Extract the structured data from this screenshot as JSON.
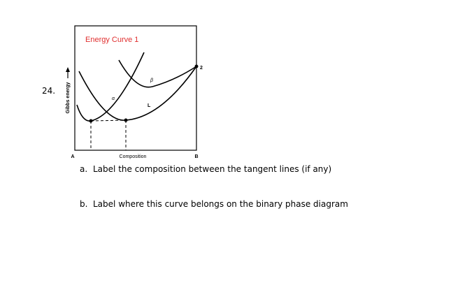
{
  "question": {
    "number": "24.",
    "figure": {
      "title": "Energy Curve 1",
      "y_label": "Gibbs energy",
      "x_label": "Composition",
      "x_left": "A",
      "x_right": "B",
      "alpha": "α",
      "beta": "β",
      "liquid": "L",
      "point": "2"
    },
    "items": [
      {
        "marker": "a.",
        "text": "Label the composition between the tangent lines (if any)"
      },
      {
        "marker": "b.",
        "text": "Label where this curve belongs on the binary phase diagram"
      }
    ]
  }
}
